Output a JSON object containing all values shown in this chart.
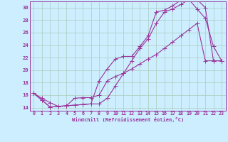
{
  "background_color": "#cceeff",
  "grid_color": "#aaccbb",
  "line_color": "#993399",
  "markersize": 2.0,
  "linewidth": 0.8,
  "xlim": [
    -0.5,
    23.5
  ],
  "ylim": [
    13.5,
    31.0
  ],
  "yticks": [
    14,
    16,
    18,
    20,
    22,
    24,
    26,
    28,
    30
  ],
  "xticks": [
    0,
    1,
    2,
    3,
    4,
    5,
    6,
    7,
    8,
    9,
    10,
    11,
    12,
    13,
    14,
    15,
    16,
    17,
    18,
    19,
    20,
    21,
    22,
    23
  ],
  "xlabel": "Windchill (Refroidissement éolien,°C)",
  "series": [
    {
      "x": [
        0,
        1,
        2,
        3,
        4,
        5,
        6,
        7,
        8,
        9,
        10,
        11,
        12,
        13,
        14,
        15,
        16,
        17,
        18,
        19,
        20,
        21,
        22,
        23
      ],
      "y": [
        16.3,
        15.5,
        14.8,
        14.2,
        14.3,
        15.5,
        15.6,
        15.6,
        16.0,
        18.3,
        19.0,
        19.5,
        20.2,
        21.0,
        21.8,
        22.5,
        23.5,
        24.5,
        25.5,
        26.5,
        27.5,
        21.5,
        21.5,
        21.5
      ]
    },
    {
      "x": [
        0,
        1,
        2,
        3,
        4,
        5,
        6,
        7,
        8,
        9,
        10,
        11,
        12,
        13,
        14,
        15,
        16,
        17,
        18,
        19,
        20,
        21,
        22,
        23
      ],
      "y": [
        16.3,
        15.2,
        14.1,
        14.2,
        14.3,
        14.4,
        14.5,
        14.6,
        18.3,
        20.2,
        21.8,
        22.2,
        22.2,
        23.8,
        25.5,
        29.3,
        29.6,
        30.3,
        31.2,
        31.3,
        29.8,
        28.3,
        23.8,
        21.5
      ]
    },
    {
      "x": [
        0,
        1,
        2,
        3,
        4,
        5,
        6,
        7,
        8,
        9,
        10,
        11,
        12,
        13,
        14,
        15,
        16,
        17,
        18,
        19,
        20,
        21,
        22,
        23
      ],
      "y": [
        16.3,
        15.2,
        14.1,
        14.2,
        14.3,
        14.4,
        14.5,
        14.6,
        14.6,
        15.5,
        17.5,
        19.5,
        21.5,
        23.5,
        25.0,
        27.5,
        29.3,
        29.8,
        30.5,
        31.3,
        31.3,
        30.0,
        21.5,
        21.5
      ]
    }
  ]
}
